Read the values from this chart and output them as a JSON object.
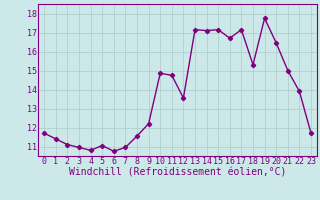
{
  "x": [
    0,
    1,
    2,
    3,
    4,
    5,
    6,
    7,
    8,
    9,
    10,
    11,
    12,
    13,
    14,
    15,
    16,
    17,
    18,
    19,
    20,
    21,
    22,
    23
  ],
  "y": [
    11.7,
    11.4,
    11.1,
    10.95,
    10.8,
    11.05,
    10.75,
    10.95,
    11.55,
    12.2,
    14.85,
    14.75,
    13.55,
    17.15,
    17.1,
    17.15,
    16.7,
    17.15,
    15.3,
    17.75,
    16.45,
    15.0,
    13.9,
    11.7
  ],
  "line_color": "#800080",
  "marker": "D",
  "marker_size": 2.2,
  "bg_color": "#cce8e8",
  "grid_color": "#aacccc",
  "xlabel": "Windchill (Refroidissement éolien,°C)",
  "ylabel": "",
  "ylim": [
    10.5,
    18.5
  ],
  "xlim": [
    -0.5,
    23.5
  ],
  "yticks": [
    11,
    12,
    13,
    14,
    15,
    16,
    17,
    18
  ],
  "xticks": [
    0,
    1,
    2,
    3,
    4,
    5,
    6,
    7,
    8,
    9,
    10,
    11,
    12,
    13,
    14,
    15,
    16,
    17,
    18,
    19,
    20,
    21,
    22,
    23
  ],
  "tick_label_size": 6.0,
  "xlabel_size": 7.0,
  "line_width": 1.0
}
